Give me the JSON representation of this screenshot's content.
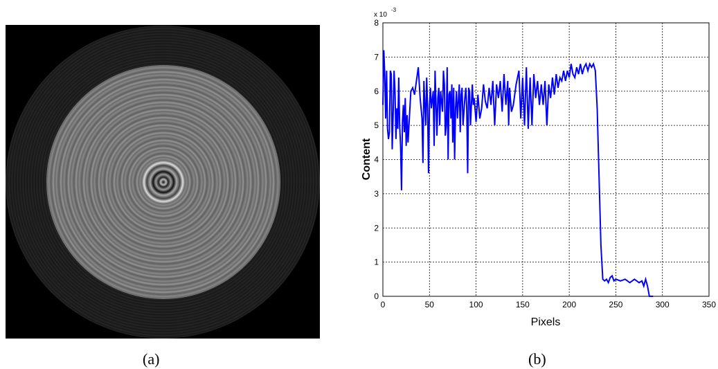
{
  "captions": [
    "(a)",
    "(b)"
  ],
  "chart_data": {
    "type": "line",
    "xlabel": "Pixels",
    "ylabel": "Content",
    "y_multiplier": "x 10",
    "y_multiplier_exponent": "-3",
    "xlim": [
      0,
      350
    ],
    "xticks": [
      0,
      50,
      100,
      150,
      200,
      250,
      300,
      350
    ],
    "ylim": [
      0,
      8
    ],
    "yticks": [
      0,
      1,
      2,
      3,
      4,
      5,
      6,
      7,
      8
    ],
    "grid": true,
    "series": [
      {
        "color": "#0000ff",
        "x": [
          0,
          1,
          2,
          3,
          4,
          5,
          6,
          7,
          8,
          9,
          10,
          11,
          12,
          13,
          14,
          15,
          16,
          17,
          18,
          19,
          20,
          21,
          22,
          23,
          24,
          25,
          26,
          27,
          28,
          30,
          32,
          34,
          36,
          38,
          40,
          42,
          43,
          44,
          46,
          47,
          48,
          49,
          50,
          51,
          52,
          54,
          55,
          56,
          58,
          59,
          60,
          61,
          62,
          64,
          65,
          66,
          67,
          68,
          69,
          70,
          71,
          72,
          73,
          74,
          75,
          76,
          77,
          78,
          79,
          80,
          82,
          83,
          84,
          85,
          86,
          88,
          89,
          90,
          91,
          92,
          93,
          94,
          96,
          97,
          98,
          100,
          102,
          104,
          106,
          108,
          110,
          112,
          114,
          116,
          118,
          120,
          122,
          124,
          126,
          128,
          130,
          132,
          134,
          135,
          136,
          138,
          140,
          143,
          146,
          148,
          150,
          152,
          154,
          156,
          158,
          160,
          162,
          164,
          166,
          168,
          170,
          172,
          174,
          176,
          178,
          180,
          182,
          184,
          186,
          188,
          190,
          192,
          194,
          196,
          198,
          200,
          202,
          204,
          206,
          208,
          210,
          212,
          214,
          216,
          218,
          220,
          222,
          224,
          226,
          228,
          230,
          232,
          234,
          236,
          238,
          240,
          242,
          244,
          246,
          248,
          250,
          255,
          260,
          265,
          270,
          275,
          278,
          280,
          282,
          284,
          285,
          286,
          290
        ],
        "values": [
          5.6,
          7.2,
          6.5,
          5.2,
          6.6,
          4.9,
          4.6,
          4.8,
          6.6,
          6.5,
          4.3,
          5.3,
          6.6,
          6.0,
          4.6,
          5.5,
          4.9,
          6.4,
          5.0,
          4.4,
          3.1,
          5.1,
          5.6,
          4.8,
          5.8,
          4.4,
          5.3,
          4.5,
          5.0,
          6.0,
          6.1,
          5.9,
          6.3,
          6.7,
          5.8,
          5.2,
          3.9,
          6.3,
          5.0,
          6.4,
          5.5,
          3.6,
          5.6,
          6.1,
          5.5,
          6.0,
          4.4,
          6.6,
          4.7,
          5.8,
          6.1,
          5.0,
          6.0,
          5.4,
          6.6,
          6.2,
          4.7,
          5.0,
          6.7,
          4.0,
          5.9,
          6.0,
          5.2,
          6.2,
          4.5,
          6.1,
          4.0,
          5.5,
          6.0,
          5.2,
          6.2,
          4.8,
          5.9,
          6.1,
          5.0,
          5.8,
          6.1,
          5.5,
          3.6,
          6.1,
          6.0,
          5.0,
          6.2,
          5.6,
          5.8,
          5.1,
          5.9,
          5.2,
          5.5,
          6.2,
          5.7,
          5.5,
          6.1,
          5.6,
          6.3,
          5.0,
          6.2,
          5.8,
          6.3,
          5.4,
          6.5,
          5.6,
          6.3,
          5.0,
          6.1,
          5.4,
          5.6,
          6.2,
          6.6,
          5.2,
          6.4,
          5.0,
          6.7,
          4.9,
          6.4,
          5.0,
          6.5,
          5.8,
          6.3,
          5.6,
          6.2,
          5.6,
          6.3,
          5.0,
          6.2,
          5.8,
          6.4,
          5.9,
          6.5,
          6.1,
          6.4,
          6.3,
          6.6,
          6.3,
          6.6,
          6.4,
          6.8,
          6.5,
          6.4,
          6.7,
          6.5,
          6.8,
          6.5,
          6.7,
          6.8,
          6.6,
          6.8,
          6.7,
          6.8,
          6.6,
          5.5,
          3.5,
          1.5,
          0.5,
          0.45,
          0.5,
          0.4,
          0.55,
          0.6,
          0.45,
          0.5,
          0.45,
          0.5,
          0.4,
          0.5,
          0.4,
          0.45,
          0.3,
          0.5,
          0.3,
          0.15,
          0,
          0
        ]
      }
    ]
  }
}
